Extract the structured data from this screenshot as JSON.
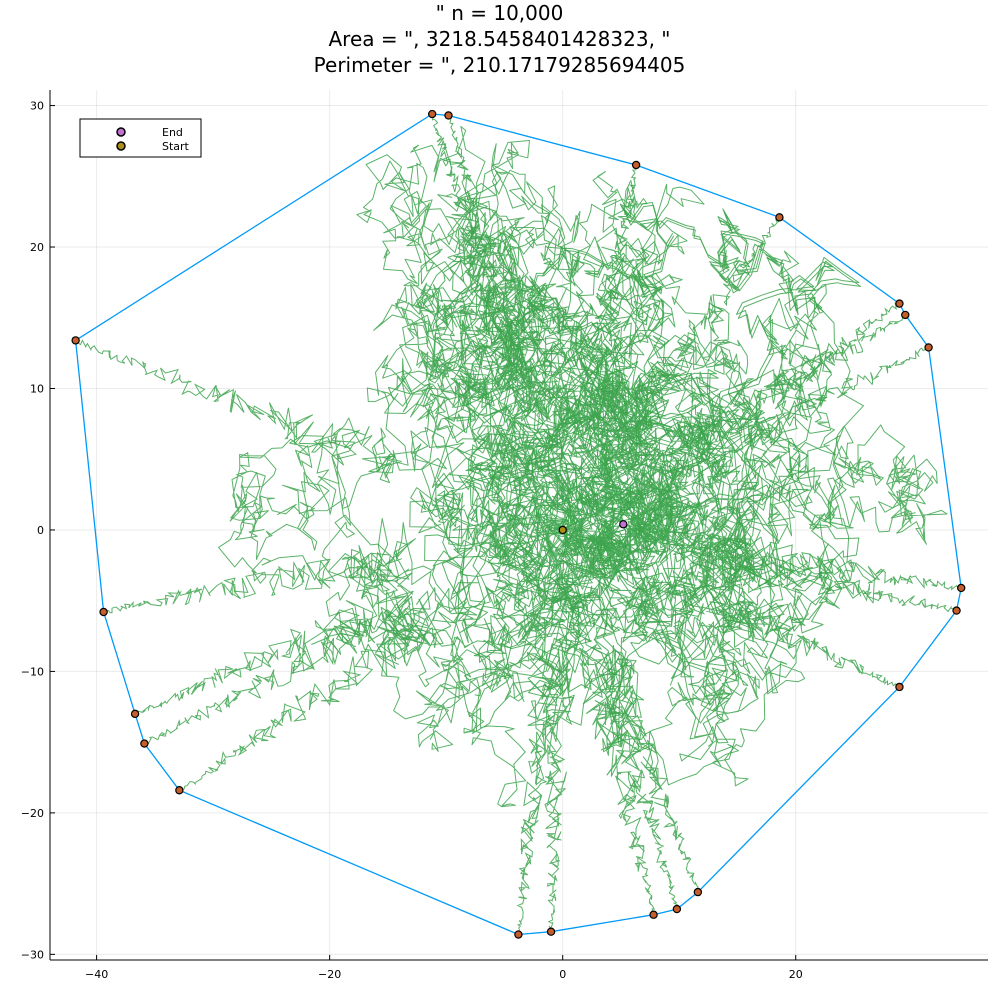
{
  "title": {
    "line1": "\" n = 10,000",
    "line2": "Area = \", 3218.5458401428323, \"",
    "line3": "Perimeter = \", 210.17179285694405"
  },
  "chart_data": {
    "type": "scatter",
    "title": "\" n = 10,000 Area = \", 3218.5458401428323, \" Perimeter = \", 210.17179285694405",
    "xlabel": "",
    "ylabel": "",
    "xlim": [
      -44,
      36.5
    ],
    "ylim": [
      -30.4,
      31.1
    ],
    "xticks": [
      -40,
      -20,
      0,
      20
    ],
    "yticks": [
      -30,
      -20,
      -10,
      0,
      10,
      20,
      30
    ],
    "xtick_labels": [
      "−40",
      "−20",
      "0",
      "20"
    ],
    "ytick_labels": [
      "−30",
      "−20",
      "−10",
      "0",
      "10",
      "20",
      "30"
    ],
    "grid": true,
    "legend_position": "top-left",
    "colors": {
      "walk": "#3da44d",
      "hull": "#009af9",
      "end": "#c271d2",
      "start": "#ac8d18",
      "hull_point": "#c45f2b"
    },
    "series": [
      {
        "name": "End",
        "type": "scatter",
        "points": [
          [
            5.2,
            0.4
          ]
        ]
      },
      {
        "name": "Start",
        "type": "scatter",
        "points": [
          [
            0,
            0
          ]
        ]
      }
    ],
    "hull": [
      [
        -11.2,
        29.4
      ],
      [
        -9.8,
        29.3
      ],
      [
        6.3,
        25.8
      ],
      [
        18.6,
        22.1
      ],
      [
        28.9,
        16.0
      ],
      [
        29.4,
        15.2
      ],
      [
        31.4,
        12.9
      ],
      [
        34.2,
        -4.1
      ],
      [
        33.8,
        -5.7
      ],
      [
        28.9,
        -11.1
      ],
      [
        11.6,
        -25.6
      ],
      [
        9.8,
        -26.8
      ],
      [
        7.8,
        -27.2
      ],
      [
        -1.0,
        -28.4
      ],
      [
        -3.8,
        -28.6
      ],
      [
        -32.9,
        -18.4
      ],
      [
        -35.9,
        -15.1
      ],
      [
        -36.7,
        -13.0
      ],
      [
        -39.4,
        -5.8
      ],
      [
        -41.8,
        13.4
      ]
    ],
    "walk_steps": 10000
  }
}
